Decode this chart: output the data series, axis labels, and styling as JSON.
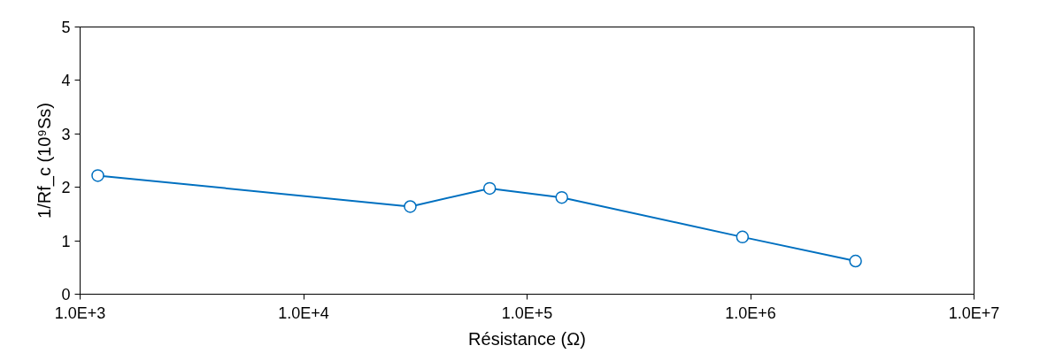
{
  "chart_data": {
    "type": "line",
    "xlabel": "Résistance (Ω)",
    "ylabel": "1/Rf_c (10⁹Ss)",
    "log": "x",
    "x": [
      1200,
      30000,
      68000,
      143000,
      920000,
      2950000
    ],
    "values": [
      2.22,
      1.64,
      1.98,
      1.81,
      1.07,
      0.62
    ],
    "color": "#0070c0",
    "marker": "circle",
    "line_style": "solid",
    "grid": false,
    "xlim": [
      1000,
      10000000
    ],
    "xticks": [
      {
        "value": 1000,
        "label": "1.0E+3"
      },
      {
        "value": 10000,
        "label": "1.0E+4"
      },
      {
        "value": 100000,
        "label": "1.0E+5"
      },
      {
        "value": 1000000,
        "label": "1.0E+6"
      },
      {
        "value": 10000000,
        "label": "1.0E+7"
      }
    ],
    "ylim": [
      0,
      5
    ],
    "yticks": [
      0,
      1,
      2,
      3,
      4,
      5
    ]
  }
}
